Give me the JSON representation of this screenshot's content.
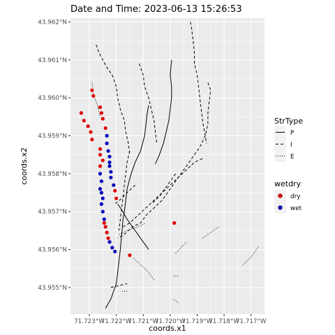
{
  "chart_data": {
    "type": "scatter",
    "title": "Date and Time: 2023-06-13 15:26:53",
    "xlabel": "coords.x1",
    "ylabel": "coords.x2",
    "xlim": [
      -71.7237,
      -71.7165
    ],
    "ylim": [
      43.9543,
      43.9621
    ],
    "x_ticks": [
      {
        "value": -71.723,
        "label": "71.723°W"
      },
      {
        "value": -71.722,
        "label": "71.722°W"
      },
      {
        "value": -71.721,
        "label": "71.721°W"
      },
      {
        "value": -71.72,
        "label": "71.720°W"
      },
      {
        "value": -71.719,
        "label": "71.719°W"
      },
      {
        "value": -71.718,
        "label": "71.718°W"
      },
      {
        "value": -71.717,
        "label": "71.717°W"
      }
    ],
    "y_ticks": [
      {
        "value": 43.955,
        "label": "43.955°N"
      },
      {
        "value": 43.956,
        "label": "43.956°N"
      },
      {
        "value": 43.957,
        "label": "43.957°N"
      },
      {
        "value": 43.958,
        "label": "43.958°N"
      },
      {
        "value": 43.959,
        "label": "43.959°N"
      },
      {
        "value": 43.96,
        "label": "43.960°N"
      },
      {
        "value": 43.961,
        "label": "43.961°N"
      },
      {
        "value": 43.962,
        "label": "43.962°N"
      }
    ],
    "grid": true,
    "legend_position": "right",
    "legends": [
      {
        "title": "StrType",
        "items": [
          {
            "label": "P",
            "linetype": "solid"
          },
          {
            "label": "I",
            "linetype": "dashed"
          },
          {
            "label": "E",
            "linetype": "dotted"
          }
        ]
      },
      {
        "title": "wetdry",
        "items": [
          {
            "label": "dry",
            "color": "#dd0000"
          },
          {
            "label": "wet",
            "color": "#0000bb"
          }
        ]
      }
    ],
    "streams": [
      {
        "type": "P",
        "points": [
          [
            -71.7224,
            43.95445
          ],
          [
            -71.7222,
            43.9547
          ],
          [
            -71.722,
            43.9551
          ],
          [
            -71.72195,
            43.9554
          ],
          [
            -71.7219,
            43.9557
          ],
          [
            -71.72185,
            43.956
          ],
          [
            -71.7218,
            43.9564
          ],
          [
            -71.72175,
            43.9568
          ],
          [
            -71.7217,
            43.957
          ],
          [
            -71.72165,
            43.9573
          ],
          [
            -71.7216,
            43.9576
          ],
          [
            -71.72145,
            43.958
          ],
          [
            -71.7213,
            43.9583
          ],
          [
            -71.7211,
            43.9586
          ],
          [
            -71.72095,
            43.959
          ],
          [
            -71.7209,
            43.9593
          ],
          [
            -71.72085,
            43.9596
          ],
          [
            -71.7208,
            43.9598
          ]
        ]
      },
      {
        "type": "P",
        "points": [
          [
            -71.72055,
            43.95826
          ],
          [
            -71.7204,
            43.9585
          ],
          [
            -71.72025,
            43.9588
          ],
          [
            -71.72015,
            43.9591
          ],
          [
            -71.72005,
            43.9594
          ],
          [
            -71.72,
            43.9597
          ],
          [
            -71.71995,
            43.96
          ],
          [
            -71.71995,
            43.9603
          ],
          [
            -71.72,
            43.9606
          ],
          [
            -71.71995,
            43.961
          ]
        ]
      },
      {
        "type": "P",
        "points": [
          [
            -71.72195,
            43.9572
          ],
          [
            -71.7218,
            43.95705
          ],
          [
            -71.7216,
            43.9568
          ],
          [
            -71.7214,
            43.9566
          ],
          [
            -71.7212,
            43.9564
          ],
          [
            -71.721,
            43.9562
          ],
          [
            -71.7208,
            43.956
          ]
        ]
      },
      {
        "type": "I",
        "points": [
          [
            -71.72275,
            43.9614
          ],
          [
            -71.72265,
            43.9612
          ],
          [
            -71.7225,
            43.961
          ],
          [
            -71.72235,
            43.9608
          ],
          [
            -71.72215,
            43.9606
          ],
          [
            -71.722,
            43.9603
          ],
          [
            -71.72195,
            43.96
          ],
          [
            -71.72185,
            43.9597
          ],
          [
            -71.7217,
            43.9594
          ],
          [
            -71.72165,
            43.9591
          ],
          [
            -71.72155,
            43.9588
          ],
          [
            -71.7215,
            43.9585
          ]
        ]
      },
      {
        "type": "I",
        "points": [
          [
            -71.7215,
            43.9586
          ],
          [
            -71.7216,
            43.9583
          ],
          [
            -71.72165,
            43.958
          ],
          [
            -71.7217,
            43.9577
          ],
          [
            -71.72175,
            43.9574
          ],
          [
            -71.7218,
            43.9571
          ],
          [
            -71.72185,
            43.9568
          ],
          [
            -71.7219,
            43.9565
          ]
        ]
      },
      {
        "type": "I",
        "points": [
          [
            -71.72115,
            43.9609
          ],
          [
            -71.721,
            43.9606
          ],
          [
            -71.72095,
            43.9603
          ],
          [
            -71.7208,
            43.96
          ],
          [
            -71.7207,
            43.9597
          ],
          [
            -71.7206,
            43.9594
          ],
          [
            -71.72055,
            43.9591
          ],
          [
            -71.7205,
            43.9588
          ]
        ]
      },
      {
        "type": "I",
        "points": [
          [
            -71.71925,
            43.962
          ],
          [
            -71.7192,
            43.9618
          ],
          [
            -71.71915,
            43.9615
          ],
          [
            -71.7191,
            43.9612
          ],
          [
            -71.7191,
            43.9609
          ],
          [
            -71.719,
            43.9606
          ],
          [
            -71.71895,
            43.9603
          ],
          [
            -71.7189,
            43.96
          ],
          [
            -71.71885,
            43.9597
          ],
          [
            -71.7188,
            43.9594
          ],
          [
            -71.71875,
            43.9592
          ],
          [
            -71.7187,
            43.959
          ],
          [
            -71.71865,
            43.9588
          ]
        ]
      },
      {
        "type": "I",
        "points": [
          [
            -71.7186,
            43.9604
          ],
          [
            -71.7185,
            43.9602
          ],
          [
            -71.71855,
            43.9599
          ],
          [
            -71.7186,
            43.9596
          ],
          [
            -71.7186,
            43.9593
          ],
          [
            -71.7187,
            43.959
          ],
          [
            -71.7189,
            43.9587
          ],
          [
            -71.7191,
            43.9585
          ],
          [
            -71.7193,
            43.9583
          ],
          [
            -71.7195,
            43.9581
          ],
          [
            -71.7197,
            43.9579
          ],
          [
            -71.7199,
            43.9577
          ],
          [
            -71.7201,
            43.9575
          ],
          [
            -71.7203,
            43.9573
          ],
          [
            -71.7206,
            43.9571
          ],
          [
            -71.7209,
            43.9569
          ],
          [
            -71.7211,
            43.9567
          ],
          [
            -71.7214,
            43.9566
          ],
          [
            -71.7217,
            43.9564
          ],
          [
            -71.72195,
            43.9563
          ]
        ]
      },
      {
        "type": "I",
        "points": [
          [
            -71.7188,
            43.9584
          ],
          [
            -71.7191,
            43.9583
          ],
          [
            -71.7194,
            43.9581
          ],
          [
            -71.7197,
            43.9579
          ],
          [
            -71.72,
            43.9577
          ],
          [
            -71.7203,
            43.9575
          ],
          [
            -71.7206,
            43.9573
          ],
          [
            -71.7209,
            43.9571
          ],
          [
            -71.7212,
            43.9569
          ],
          [
            -71.7215,
            43.9567
          ],
          [
            -71.72175,
            43.9566
          ]
        ]
      },
      {
        "type": "I",
        "points": [
          [
            -71.7198,
            43.958
          ],
          [
            -71.72,
            43.9578
          ],
          [
            -71.7202,
            43.9576
          ],
          [
            -71.7204,
            43.9574
          ],
          [
            -71.7207,
            43.9572
          ]
        ]
      },
      {
        "type": "I",
        "points": [
          [
            -71.7213,
            43.9577
          ],
          [
            -71.7216,
            43.9575
          ],
          [
            -71.7218,
            43.95735
          ],
          [
            -71.72205,
            43.9572
          ]
        ]
      },
      {
        "type": "I",
        "points": [
          [
            -71.7222,
            43.955
          ],
          [
            -71.7219,
            43.95505
          ],
          [
            -71.7216,
            43.9551
          ]
        ]
      },
      {
        "type": "E",
        "points": [
          [
            -71.7229,
            43.9604
          ],
          [
            -71.72285,
            43.9601
          ],
          [
            -71.7227,
            43.9598
          ],
          [
            -71.7226,
            43.9595
          ]
        ]
      },
      {
        "type": "E",
        "points": [
          [
            -71.7219,
            43.9564
          ],
          [
            -71.7216,
            43.9565
          ],
          [
            -71.7212,
            43.9566
          ],
          [
            -71.7209,
            43.9567
          ]
        ]
      },
      {
        "type": "E",
        "points": [
          [
            -71.7206,
            43.9552
          ],
          [
            -71.7208,
            43.9554
          ],
          [
            -71.7211,
            43.9556
          ],
          [
            -71.7214,
            43.9558
          ]
        ]
      },
      {
        "type": "E",
        "points": [
          [
            -71.7198,
            43.9559
          ],
          [
            -71.7196,
            43.95605
          ],
          [
            -71.7194,
            43.9562
          ]
        ]
      },
      {
        "type": "E",
        "points": [
          [
            -71.7188,
            43.9563
          ],
          [
            -71.7185,
            43.95645
          ],
          [
            -71.7182,
            43.9566
          ]
        ]
      },
      {
        "type": "E",
        "points": [
          [
            -71.7173,
            43.9556
          ],
          [
            -71.717,
            43.9558
          ],
          [
            -71.7167,
            43.9561
          ]
        ]
      },
      {
        "type": "E",
        "points": [
          [
            -71.7197,
            43.9553
          ],
          [
            -71.7199,
            43.9553
          ]
        ]
      },
      {
        "type": "E",
        "points": [
          [
            -71.7197,
            43.9546
          ],
          [
            -71.7199,
            43.9547
          ]
        ]
      },
      {
        "type": "E",
        "points": [
          [
            -71.7216,
            43.9549
          ],
          [
            -71.7218,
            43.9549
          ]
        ]
      }
    ],
    "points": [
      {
        "x": -71.7229,
        "y": 43.9602,
        "wetdry": "dry"
      },
      {
        "x": -71.72285,
        "y": 43.96005,
        "wetdry": "dry"
      },
      {
        "x": -71.7233,
        "y": 43.9596,
        "wetdry": "dry"
      },
      {
        "x": -71.7232,
        "y": 43.9594,
        "wetdry": "dry"
      },
      {
        "x": -71.72305,
        "y": 43.95925,
        "wetdry": "dry"
      },
      {
        "x": -71.72295,
        "y": 43.9591,
        "wetdry": "dry"
      },
      {
        "x": -71.7229,
        "y": 43.9589,
        "wetdry": "dry"
      },
      {
        "x": -71.7226,
        "y": 43.95865,
        "wetdry": "dry"
      },
      {
        "x": -71.7226,
        "y": 43.9585,
        "wetdry": "dry"
      },
      {
        "x": -71.7225,
        "y": 43.95835,
        "wetdry": "dry"
      },
      {
        "x": -71.7226,
        "y": 43.9582,
        "wetdry": "dry"
      },
      {
        "x": -71.7226,
        "y": 43.95975,
        "wetdry": "dry"
      },
      {
        "x": -71.72255,
        "y": 43.9596,
        "wetdry": "dry"
      },
      {
        "x": -71.7225,
        "y": 43.95945,
        "wetdry": "dry"
      },
      {
        "x": -71.7224,
        "y": 43.9592,
        "wetdry": "dry"
      },
      {
        "x": -71.72235,
        "y": 43.959,
        "wetdry": "wet"
      },
      {
        "x": -71.72235,
        "y": 43.9588,
        "wetdry": "wet"
      },
      {
        "x": -71.7223,
        "y": 43.9586,
        "wetdry": "wet"
      },
      {
        "x": -71.72225,
        "y": 43.95845,
        "wetdry": "wet"
      },
      {
        "x": -71.72225,
        "y": 43.9583,
        "wetdry": "wet"
      },
      {
        "x": -71.72225,
        "y": 43.9582,
        "wetdry": "wet"
      },
      {
        "x": -71.7222,
        "y": 43.95805,
        "wetdry": "wet"
      },
      {
        "x": -71.7222,
        "y": 43.9579,
        "wetdry": "wet"
      },
      {
        "x": -71.7221,
        "y": 43.9577,
        "wetdry": "wet"
      },
      {
        "x": -71.72205,
        "y": 43.95755,
        "wetdry": "dry"
      },
      {
        "x": -71.722,
        "y": 43.95735,
        "wetdry": "dry"
      },
      {
        "x": -71.71985,
        "y": 43.9567,
        "wetdry": "dry"
      },
      {
        "x": -71.7226,
        "y": 43.958,
        "wetdry": "wet"
      },
      {
        "x": -71.72255,
        "y": 43.9578,
        "wetdry": "wet"
      },
      {
        "x": -71.7226,
        "y": 43.9576,
        "wetdry": "wet"
      },
      {
        "x": -71.72255,
        "y": 43.9575,
        "wetdry": "wet"
      },
      {
        "x": -71.7225,
        "y": 43.95735,
        "wetdry": "wet"
      },
      {
        "x": -71.72255,
        "y": 43.9572,
        "wetdry": "wet"
      },
      {
        "x": -71.7225,
        "y": 43.957,
        "wetdry": "wet"
      },
      {
        "x": -71.72245,
        "y": 43.9568,
        "wetdry": "wet"
      },
      {
        "x": -71.72245,
        "y": 43.9567,
        "wetdry": "dry"
      },
      {
        "x": -71.7224,
        "y": 43.9566,
        "wetdry": "dry"
      },
      {
        "x": -71.72235,
        "y": 43.95645,
        "wetdry": "dry"
      },
      {
        "x": -71.7223,
        "y": 43.9563,
        "wetdry": "dry"
      },
      {
        "x": -71.72225,
        "y": 43.9562,
        "wetdry": "wet"
      },
      {
        "x": -71.72215,
        "y": 43.95605,
        "wetdry": "wet"
      },
      {
        "x": -71.72205,
        "y": 43.95595,
        "wetdry": "wet"
      },
      {
        "x": -71.7215,
        "y": 43.95585,
        "wetdry": "dry"
      }
    ]
  }
}
